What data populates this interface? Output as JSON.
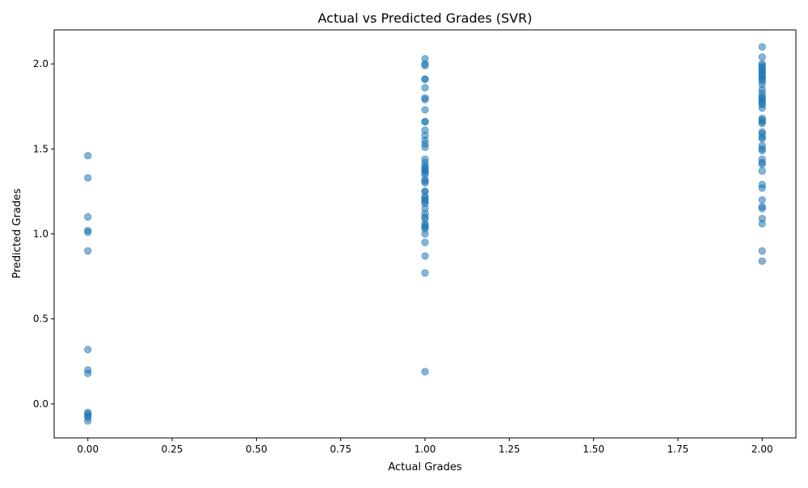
{
  "chart_data": {
    "type": "scatter",
    "title": "Actual vs Predicted Grades (SVR)",
    "xlabel": "Actual Grades",
    "ylabel": "Predicted Grades",
    "xlim": [
      -0.1,
      2.1
    ],
    "ylim": [
      -0.2,
      2.2
    ],
    "xticks": [
      0.0,
      0.25,
      0.5,
      0.75,
      1.0,
      1.25,
      1.5,
      1.75,
      2.0
    ],
    "xtick_labels": [
      "0.00",
      "0.25",
      "0.50",
      "0.75",
      "1.00",
      "1.25",
      "1.50",
      "1.75",
      "2.00"
    ],
    "yticks": [
      0.0,
      0.5,
      1.0,
      1.5,
      2.0
    ],
    "ytick_labels": [
      "0.0",
      "0.5",
      "1.0",
      "1.5",
      "2.0"
    ],
    "grid": false,
    "legend": "none",
    "marker_color": "#1f77b4",
    "marker_alpha": 0.55,
    "points": [
      [
        0,
        1.46
      ],
      [
        0,
        1.33
      ],
      [
        0,
        1.1
      ],
      [
        0,
        1.02
      ],
      [
        0,
        1.01
      ],
      [
        0,
        0.9
      ],
      [
        0,
        0.32
      ],
      [
        0,
        0.2
      ],
      [
        0,
        0.18
      ],
      [
        0,
        -0.05
      ],
      [
        0,
        -0.06
      ],
      [
        0,
        -0.07
      ],
      [
        0,
        -0.08
      ],
      [
        0,
        -0.1
      ],
      [
        1,
        2.03
      ],
      [
        1,
        2.0
      ],
      [
        1,
        1.99
      ],
      [
        1,
        1.91
      ],
      [
        1,
        1.91
      ],
      [
        1,
        1.86
      ],
      [
        1,
        1.8
      ],
      [
        1,
        1.79
      ],
      [
        1,
        1.73
      ],
      [
        1,
        1.66
      ],
      [
        1,
        1.66
      ],
      [
        1,
        1.61
      ],
      [
        1,
        1.58
      ],
      [
        1,
        1.55
      ],
      [
        1,
        1.53
      ],
      [
        1,
        1.51
      ],
      [
        1,
        1.44
      ],
      [
        1,
        1.42
      ],
      [
        1,
        1.4
      ],
      [
        1,
        1.39
      ],
      [
        1,
        1.38
      ],
      [
        1,
        1.37
      ],
      [
        1,
        1.36
      ],
      [
        1,
        1.35
      ],
      [
        1,
        1.32
      ],
      [
        1,
        1.31
      ],
      [
        1,
        1.3
      ],
      [
        1,
        1.25
      ],
      [
        1,
        1.25
      ],
      [
        1,
        1.22
      ],
      [
        1,
        1.21
      ],
      [
        1,
        1.2
      ],
      [
        1,
        1.19
      ],
      [
        1,
        1.18
      ],
      [
        1,
        1.15
      ],
      [
        1,
        1.12
      ],
      [
        1,
        1.1
      ],
      [
        1,
        1.09
      ],
      [
        1,
        1.06
      ],
      [
        1,
        1.05
      ],
      [
        1,
        1.04
      ],
      [
        1,
        1.03
      ],
      [
        1,
        1.0
      ],
      [
        1,
        0.95
      ],
      [
        1,
        0.87
      ],
      [
        1,
        0.77
      ],
      [
        1,
        0.19
      ],
      [
        2,
        2.1
      ],
      [
        2,
        2.04
      ],
      [
        2,
        2.0
      ],
      [
        2,
        1.99
      ],
      [
        2,
        1.98
      ],
      [
        2,
        1.97
      ],
      [
        2,
        1.96
      ],
      [
        2,
        1.95
      ],
      [
        2,
        1.94
      ],
      [
        2,
        1.93
      ],
      [
        2,
        1.92
      ],
      [
        2,
        1.91
      ],
      [
        2,
        1.9
      ],
      [
        2,
        1.88
      ],
      [
        2,
        1.85
      ],
      [
        2,
        1.83
      ],
      [
        2,
        1.81
      ],
      [
        2,
        1.8
      ],
      [
        2,
        1.79
      ],
      [
        2,
        1.78
      ],
      [
        2,
        1.77
      ],
      [
        2,
        1.76
      ],
      [
        2,
        1.74
      ],
      [
        2,
        1.68
      ],
      [
        2,
        1.67
      ],
      [
        2,
        1.66
      ],
      [
        2,
        1.65
      ],
      [
        2,
        1.6
      ],
      [
        2,
        1.59
      ],
      [
        2,
        1.57
      ],
      [
        2,
        1.56
      ],
      [
        2,
        1.52
      ],
      [
        2,
        1.5
      ],
      [
        2,
        1.49
      ],
      [
        2,
        1.44
      ],
      [
        2,
        1.42
      ],
      [
        2,
        1.41
      ],
      [
        2,
        1.37
      ],
      [
        2,
        1.29
      ],
      [
        2,
        1.27
      ],
      [
        2,
        1.2
      ],
      [
        2,
        1.16
      ],
      [
        2,
        1.15
      ],
      [
        2,
        1.09
      ],
      [
        2,
        1.06
      ],
      [
        2,
        0.9
      ],
      [
        2,
        0.84
      ]
    ]
  }
}
